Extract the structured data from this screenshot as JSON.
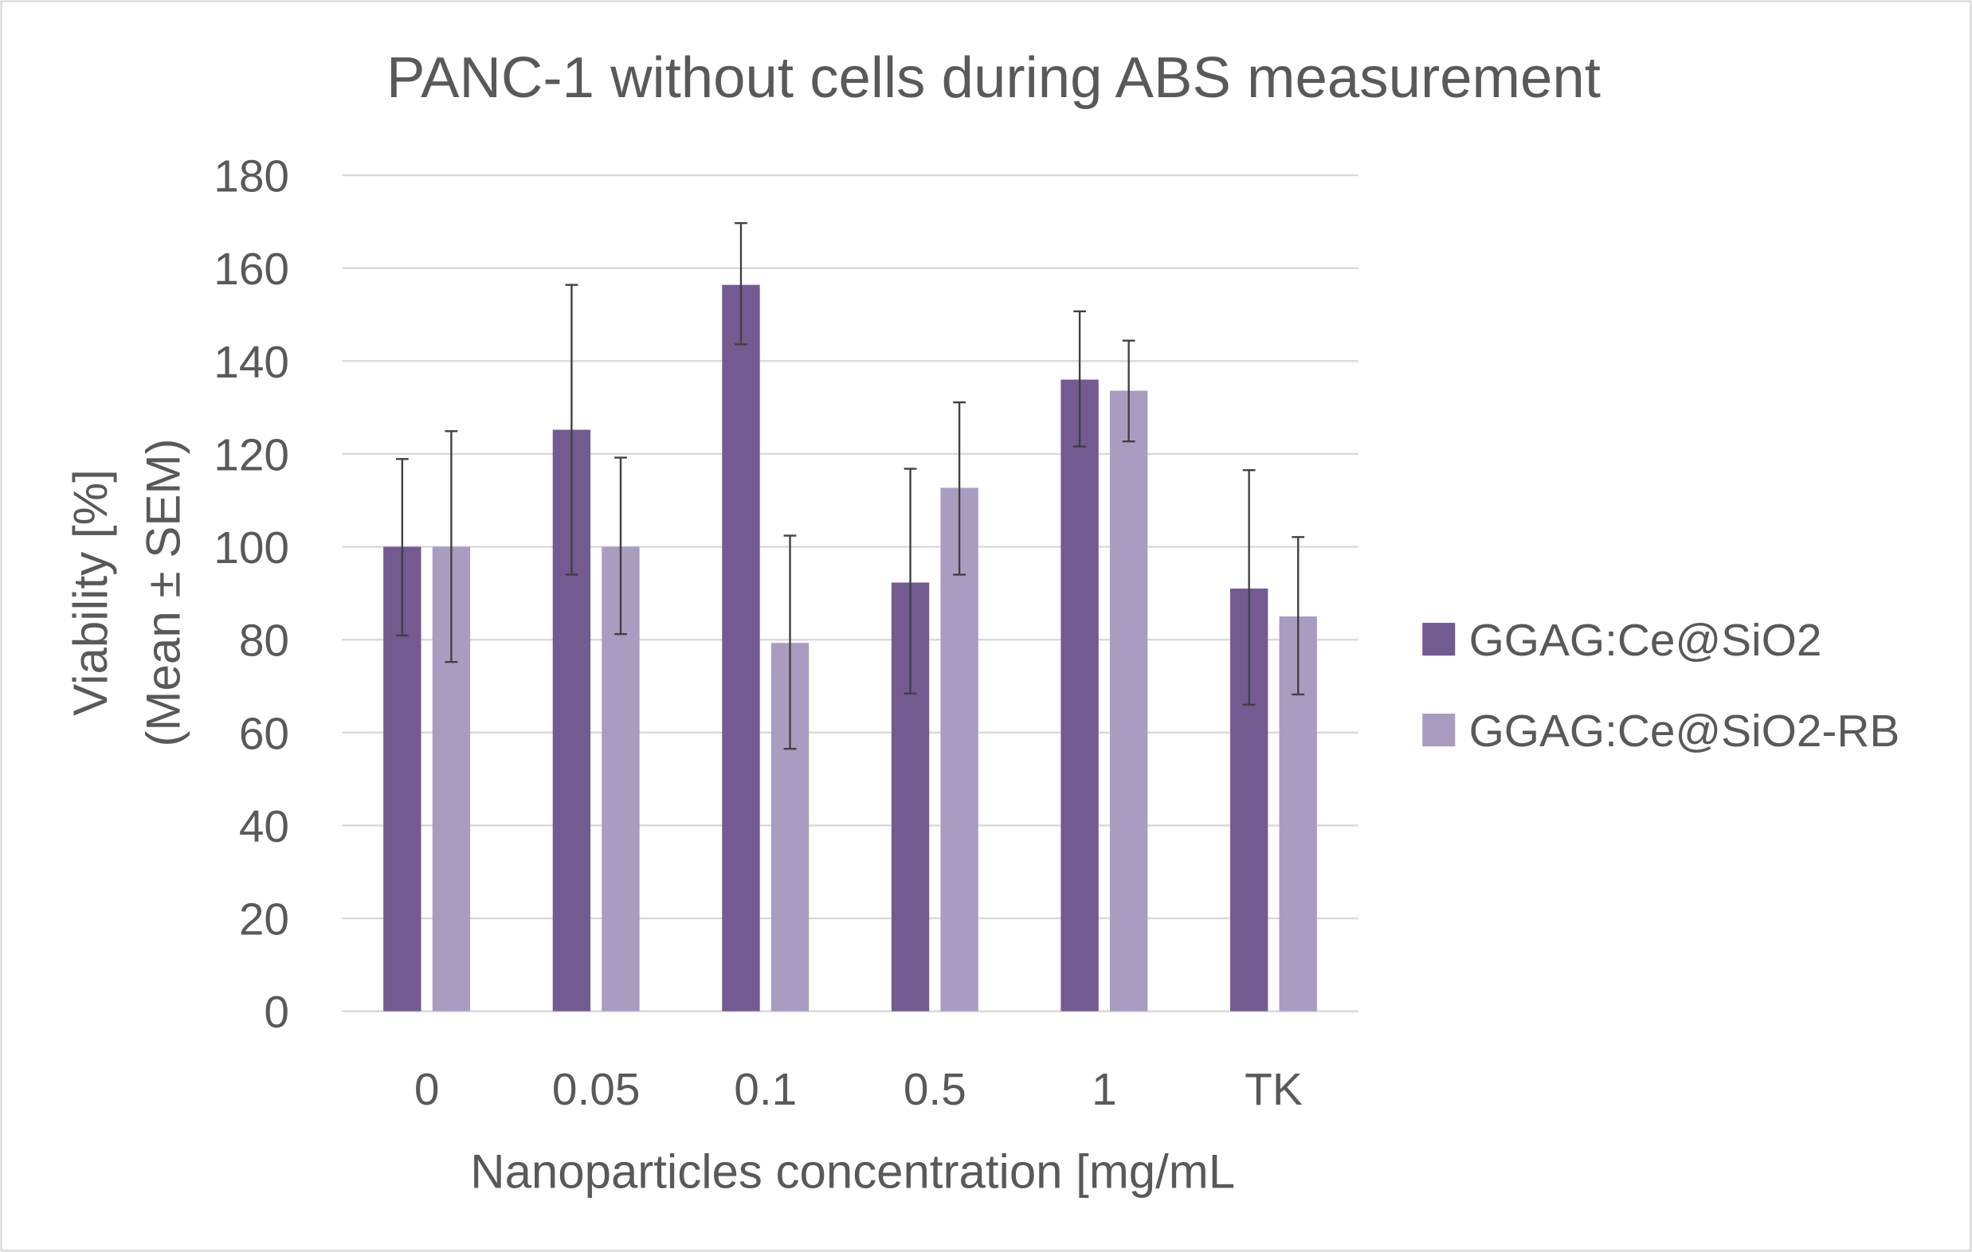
{
  "chart_data": {
    "type": "bar",
    "title": "PANC-1 without cells during ABS measurement",
    "xlabel": "Nanoparticles concentration [mg/mL",
    "ylabel_line1": "Viability [%]",
    "ylabel_line2": "(Mean ± SEM)",
    "categories": [
      "0",
      "0.05",
      "0.1",
      "0.5",
      "1",
      "TK"
    ],
    "ylim": [
      0,
      180
    ],
    "yticks": [
      0,
      20,
      40,
      60,
      80,
      100,
      120,
      140,
      160,
      180
    ],
    "grid": true,
    "legend_position": "right",
    "series": [
      {
        "name": "GGAG:Ce@SiO2",
        "color": "#735a91",
        "values": [
          100,
          125.2,
          156.4,
          92.3,
          136,
          91
        ],
        "err_upper": [
          118.9,
          156.4,
          169.7,
          116.8,
          150.7,
          116.5
        ],
        "err_lower": [
          80.9,
          94,
          143.6,
          68.4,
          121.6,
          66
        ]
      },
      {
        "name": "GGAG:Ce@SiO2-RB",
        "color": "#aa9cc0",
        "values": [
          100,
          100,
          79.3,
          112.7,
          133.6,
          85
        ],
        "err_upper": [
          124.9,
          119.2,
          102.4,
          131.1,
          144.4,
          102.1
        ],
        "err_lower": [
          75.2,
          81.2,
          56.5,
          94,
          122.7,
          68.2
        ]
      }
    ]
  }
}
